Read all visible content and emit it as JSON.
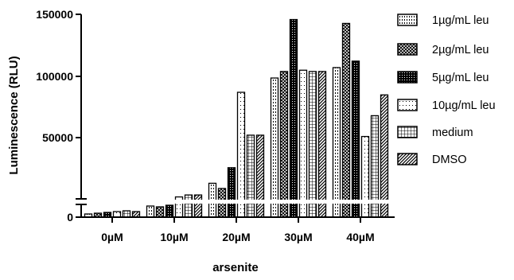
{
  "chart_data": {
    "type": "bar",
    "title": "",
    "xlabel": "arsenite",
    "ylabel": "Luminescence (RLU)",
    "categories": [
      "0µM",
      "10µM",
      "20µM",
      "30µM",
      "40µM"
    ],
    "y_ticks": [
      "0",
      "50000",
      "100000",
      "150000"
    ],
    "ylim_lower_segment": [
      0,
      8000
    ],
    "ylim_upper_segment": [
      8000,
      150000
    ],
    "axis_break": true,
    "grid": false,
    "legend_position": "right",
    "series": [
      {
        "name": "1µg/mL leu",
        "pattern": "vertical-dashes",
        "values": [
          2000,
          7000,
          20000,
          101000,
          109000
        ]
      },
      {
        "name": "2µg/mL leu",
        "pattern": "crosshatch",
        "values": [
          2500,
          6500,
          16000,
          106000,
          143000
        ]
      },
      {
        "name": "5µg/mL leu",
        "pattern": "dense-dots",
        "values": [
          3000,
          7500,
          32000,
          146000,
          114000
        ]
      },
      {
        "name": "10µg/mL leu",
        "pattern": "sparse-dots",
        "values": [
          3500,
          9500,
          90000,
          107000,
          56000
        ]
      },
      {
        "name": "medium",
        "pattern": "grid",
        "values": [
          4000,
          11000,
          57000,
          106000,
          72000
        ]
      },
      {
        "name": "DMSO",
        "pattern": "diagonal",
        "values": [
          3500,
          11000,
          57000,
          106000,
          88000
        ]
      }
    ]
  }
}
